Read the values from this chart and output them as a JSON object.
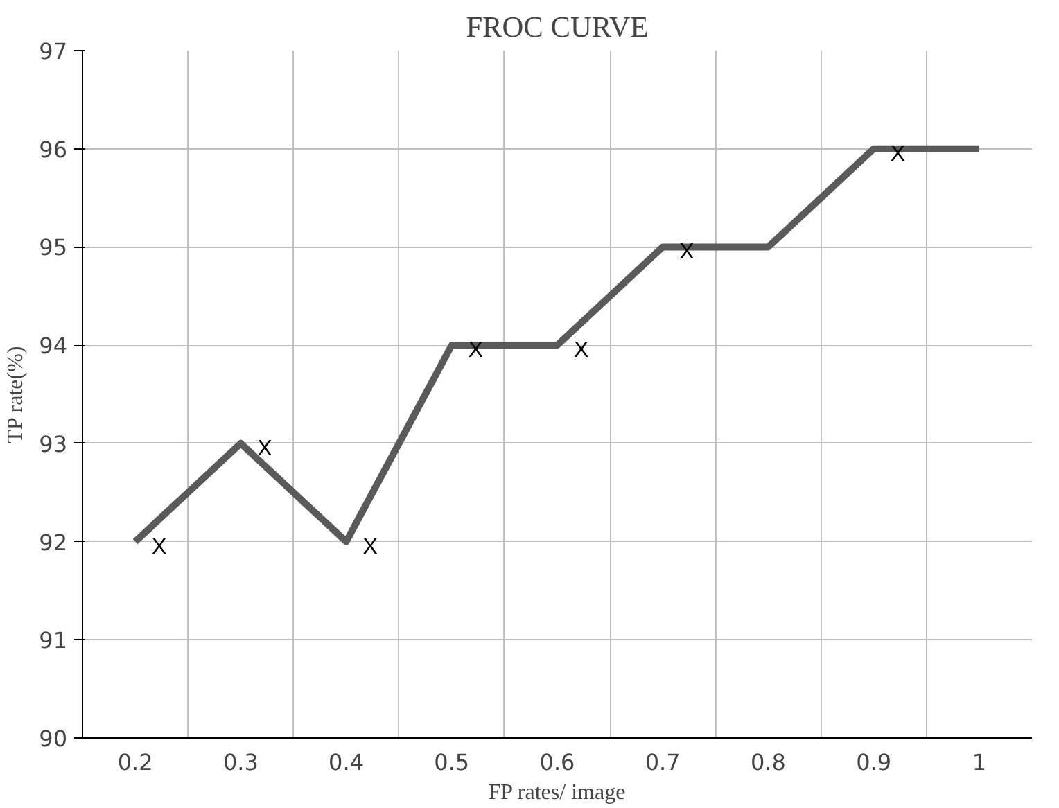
{
  "chart_data": {
    "type": "line",
    "title": "FROC CURVE",
    "xlabel": "FP rates/ image",
    "ylabel": "TP rate(%)",
    "categories": [
      "0.2",
      "0.3",
      "0.4",
      "0.5",
      "0.6",
      "0.7",
      "0.8",
      "0.9",
      "1"
    ],
    "series": [
      {
        "color": "#5a5a5a",
        "values": [
          92,
          93,
          92,
          94,
          94,
          95,
          95,
          96,
          96
        ],
        "value_labels": [
          "X",
          "X",
          "X",
          "X",
          "X",
          "X",
          null,
          "X",
          null
        ]
      }
    ],
    "ylim": [
      90,
      97
    ],
    "yticks": [
      90,
      91,
      92,
      93,
      94,
      95,
      96,
      97
    ],
    "grid": true,
    "marker": "none",
    "line_style": "solid"
  }
}
